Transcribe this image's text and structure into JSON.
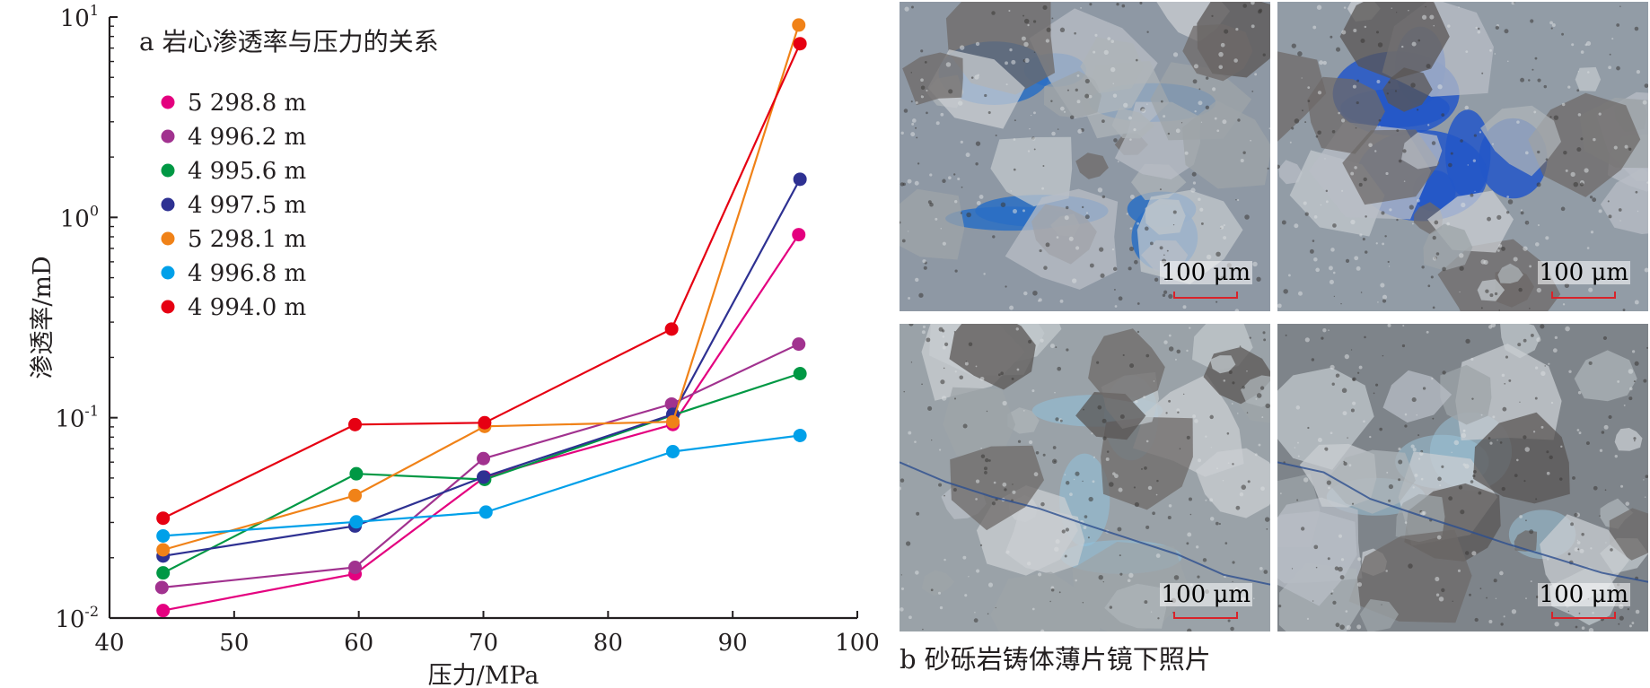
{
  "chart_data": {
    "type": "line",
    "title": "a 岩心渗透率与压力的关系",
    "xlabel": "压力/MPa",
    "ylabel": "渗透率/mD",
    "xlim": [
      40,
      100
    ],
    "ylim": [
      0.01,
      10
    ],
    "y_scale": "log",
    "x_ticks": [
      "40",
      "50",
      "60",
      "70",
      "80",
      "90",
      "100"
    ],
    "y_ticks": [
      {
        "base": "10",
        "exp": "1",
        "value": 10
      },
      {
        "base": "10",
        "exp": "0",
        "value": 1
      },
      {
        "base": "10",
        "exp": "-1",
        "value": 0.1
      },
      {
        "base": "10",
        "exp": "-2",
        "value": 0.01
      }
    ],
    "legend_position": "top-left",
    "grid": false,
    "series": [
      {
        "name": "5 298.8 m",
        "color": "#e4007f",
        "points": [
          [
            44.3,
            0.0109
          ],
          [
            59.7,
            0.0166
          ],
          [
            70.1,
            0.0505
          ],
          [
            85.2,
            0.0925
          ],
          [
            95.3,
            0.82
          ]
        ]
      },
      {
        "name": "4 996.2 m",
        "color": "#a1328f",
        "points": [
          [
            44.2,
            0.0142
          ],
          [
            59.7,
            0.0179
          ],
          [
            70.0,
            0.0625
          ],
          [
            85.1,
            0.117
          ],
          [
            95.3,
            0.233
          ]
        ]
      },
      {
        "name": "4 995.6 m",
        "color": "#009844",
        "points": [
          [
            44.3,
            0.0168
          ],
          [
            59.8,
            0.0525
          ],
          [
            70.1,
            0.0492
          ],
          [
            85.2,
            0.103
          ],
          [
            95.4,
            0.166
          ]
        ]
      },
      {
        "name": "4 997.5 m",
        "color": "#2e3192",
        "points": [
          [
            44.3,
            0.0204
          ],
          [
            59.7,
            0.0288
          ],
          [
            70.0,
            0.0505
          ],
          [
            85.2,
            0.104
          ],
          [
            95.4,
            1.55
          ]
        ]
      },
      {
        "name": "5 298.1 m",
        "color": "#f08218",
        "points": [
          [
            44.3,
            0.0219
          ],
          [
            59.7,
            0.0409
          ],
          [
            70.1,
            0.0905
          ],
          [
            85.2,
            0.0954
          ],
          [
            95.3,
            9.12
          ]
        ]
      },
      {
        "name": "4 996.8 m",
        "color": "#00a0e9",
        "points": [
          [
            44.3,
            0.0257
          ],
          [
            59.8,
            0.0302
          ],
          [
            70.2,
            0.0338
          ],
          [
            85.2,
            0.0677
          ],
          [
            95.4,
            0.0815
          ]
        ]
      },
      {
        "name": "4 994.0 m",
        "color": "#e60012",
        "points": [
          [
            44.3,
            0.0315
          ],
          [
            59.7,
            0.0924
          ],
          [
            70.1,
            0.0944
          ],
          [
            85.1,
            0.277
          ],
          [
            95.4,
            7.36
          ]
        ]
      }
    ]
  },
  "micrographs": {
    "caption": "b 砂砾岩铸体薄片镜下照片",
    "panels": [
      {
        "scale_label": "100 μm",
        "blue_color": "#2a6fc4"
      },
      {
        "scale_label": "100 μm",
        "blue_color": "#2357c8"
      },
      {
        "scale_label": "100 μm",
        "blue_color": "#8fc3e0"
      },
      {
        "scale_label": "100 μm",
        "blue_color": "#9cc6dc"
      }
    ]
  }
}
